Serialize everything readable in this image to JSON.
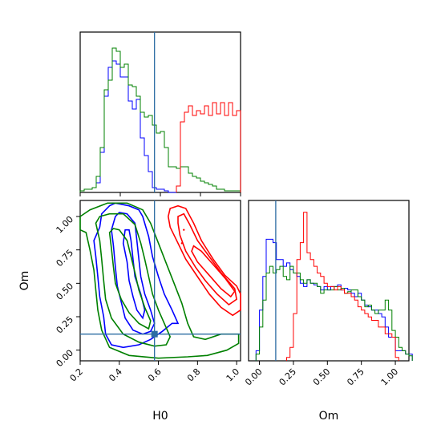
{
  "chart_data": {
    "type": "corner",
    "parameters": [
      "H0",
      "Om"
    ],
    "truth": {
      "H0": 0.58,
      "Om": 0.12
    },
    "series_colors": [
      "#0000ff",
      "#008000",
      "#ff0000"
    ],
    "truth_color": "#2b6ca3",
    "panels": {
      "h0_hist": {
        "xlim": [
          0.2,
          1.0
        ],
        "bin_width": 0.02,
        "series": [
          {
            "color": "#0000ff",
            "bins_start": 0.2,
            "values": [
              0.01,
              0.02,
              0.02,
              0.03,
              0.06,
              0.25,
              0.6,
              0.78,
              0.82,
              0.8,
              0.72,
              0.72,
              0.57,
              0.52,
              0.58,
              0.34,
              0.23,
              0.13,
              0.03,
              0.02,
              0.02,
              0.01,
              0,
              0
            ]
          },
          {
            "color": "#008000",
            "bins_start": 0.2,
            "values": [
              0.01,
              0.02,
              0.02,
              0.03,
              0.1,
              0.28,
              0.64,
              0.7,
              0.9,
              0.88,
              0.78,
              0.8,
              0.67,
              0.66,
              0.6,
              0.5,
              0.47,
              0.48,
              0.42,
              0.37,
              0.38,
              0.28,
              0.16,
              0.16,
              0.15,
              0.16,
              0.16,
              0.12,
              0.1,
              0.09,
              0.07,
              0.06,
              0.05,
              0.04,
              0.02,
              0.02,
              0.01,
              0.01,
              0.01,
              0.01
            ]
          },
          {
            "color": "#ff0000",
            "bins_start": 0.68,
            "values": [
              0.04,
              0.44,
              0.5,
              0.54,
              0.48,
              0.51,
              0.49,
              0.54,
              0.48,
              0.56,
              0.49,
              0.56,
              0.48,
              0.56,
              0.48,
              0.51
            ]
          }
        ]
      },
      "scatter": {
        "xlim": [
          0.2,
          1.02
        ],
        "ylim": [
          -0.08,
          1.12
        ],
        "xticks": [
          "0.2",
          "0.4",
          "0.6",
          "0.8",
          "1.0"
        ],
        "xtick_values": [
          0.2,
          0.4,
          0.6,
          0.8,
          1.0
        ],
        "yticks": [
          "0.00",
          "0.25",
          "0.50",
          "0.75",
          "1.00"
        ],
        "ytick_values": [
          0.0,
          0.25,
          0.5,
          0.75,
          1.0
        ],
        "ylabel": "Om",
        "xlabel": "H0",
        "contours": [
          {
            "color": "#0000ff",
            "points": [
              [
                0.35,
                1.08
              ],
              [
                0.31,
                1.02
              ],
              [
                0.3,
                0.92
              ],
              [
                0.27,
                0.82
              ],
              [
                0.28,
                0.7
              ],
              [
                0.29,
                0.55
              ],
              [
                0.3,
                0.4
              ],
              [
                0.32,
                0.25
              ],
              [
                0.33,
                0.12
              ],
              [
                0.36,
                0.04
              ],
              [
                0.42,
                0.02
              ],
              [
                0.5,
                0.04
              ],
              [
                0.56,
                0.08
              ],
              [
                0.62,
                0.14
              ],
              [
                0.67,
                0.2
              ],
              [
                0.7,
                0.2
              ],
              [
                0.67,
                0.3
              ],
              [
                0.63,
                0.42
              ],
              [
                0.6,
                0.55
              ],
              [
                0.57,
                0.7
              ],
              [
                0.55,
                0.85
              ],
              [
                0.52,
                1.0
              ],
              [
                0.5,
                1.05
              ],
              [
                0.45,
                1.08
              ],
              [
                0.38,
                1.1
              ]
            ]
          },
          {
            "color": "#0000ff",
            "points": [
              [
                0.38,
                1.0
              ],
              [
                0.36,
                0.9
              ],
              [
                0.37,
                0.78
              ],
              [
                0.38,
                0.62
              ],
              [
                0.39,
                0.48
              ],
              [
                0.41,
                0.36
              ],
              [
                0.43,
                0.24
              ],
              [
                0.47,
                0.15
              ],
              [
                0.52,
                0.12
              ],
              [
                0.56,
                0.14
              ],
              [
                0.58,
                0.2
              ],
              [
                0.56,
                0.3
              ],
              [
                0.53,
                0.42
              ],
              [
                0.51,
                0.55
              ],
              [
                0.5,
                0.68
              ],
              [
                0.49,
                0.82
              ],
              [
                0.48,
                0.95
              ],
              [
                0.44,
                1.02
              ],
              [
                0.4,
                1.03
              ]
            ]
          },
          {
            "color": "#0000ff",
            "points": [
              [
                0.43,
                0.9
              ],
              [
                0.42,
                0.8
              ],
              [
                0.44,
                0.66
              ],
              [
                0.45,
                0.52
              ],
              [
                0.47,
                0.4
              ],
              [
                0.49,
                0.3
              ],
              [
                0.52,
                0.24
              ],
              [
                0.53,
                0.3
              ],
              [
                0.51,
                0.42
              ],
              [
                0.48,
                0.55
              ],
              [
                0.47,
                0.68
              ],
              [
                0.46,
                0.82
              ],
              [
                0.45,
                0.9
              ]
            ]
          },
          {
            "color": "#008000",
            "points": [
              [
                0.2,
                0.9
              ],
              [
                0.23,
                0.88
              ],
              [
                0.25,
                0.75
              ],
              [
                0.27,
                0.6
              ],
              [
                0.28,
                0.45
              ],
              [
                0.29,
                0.3
              ],
              [
                0.31,
                0.15
              ],
              [
                0.35,
                0.02
              ],
              [
                0.45,
                -0.04
              ],
              [
                0.6,
                -0.06
              ],
              [
                0.75,
                -0.05
              ],
              [
                0.85,
                -0.04
              ],
              [
                0.95,
                0.0
              ],
              [
                1.01,
                0.05
              ],
              [
                1.01,
                0.12
              ],
              [
                0.92,
                0.12
              ],
              [
                0.84,
                0.08
              ],
              [
                0.78,
                0.1
              ],
              [
                0.75,
                0.2
              ],
              [
                0.72,
                0.35
              ],
              [
                0.68,
                0.5
              ],
              [
                0.64,
                0.65
              ],
              [
                0.6,
                0.8
              ],
              [
                0.56,
                0.95
              ],
              [
                0.52,
                1.05
              ],
              [
                0.44,
                1.1
              ],
              [
                0.34,
                1.1
              ],
              [
                0.25,
                1.05
              ],
              [
                0.2,
                1.0
              ]
            ]
          },
          {
            "color": "#008000",
            "points": [
              [
                0.28,
                0.95
              ],
              [
                0.3,
                0.82
              ],
              [
                0.31,
                0.68
              ],
              [
                0.32,
                0.52
              ],
              [
                0.33,
                0.38
              ],
              [
                0.36,
                0.24
              ],
              [
                0.42,
                0.12
              ],
              [
                0.5,
                0.06
              ],
              [
                0.58,
                0.03
              ],
              [
                0.64,
                0.04
              ],
              [
                0.66,
                0.1
              ],
              [
                0.63,
                0.2
              ],
              [
                0.6,
                0.3
              ],
              [
                0.57,
                0.42
              ],
              [
                0.55,
                0.55
              ],
              [
                0.53,
                0.68
              ],
              [
                0.51,
                0.8
              ],
              [
                0.48,
                0.94
              ],
              [
                0.42,
                1.02
              ],
              [
                0.35,
                1.02
              ],
              [
                0.3,
                1.0
              ]
            ]
          },
          {
            "color": "#008000",
            "points": [
              [
                0.35,
                0.88
              ],
              [
                0.36,
                0.76
              ],
              [
                0.37,
                0.62
              ],
              [
                0.38,
                0.5
              ],
              [
                0.41,
                0.38
              ],
              [
                0.45,
                0.28
              ],
              [
                0.5,
                0.2
              ],
              [
                0.55,
                0.16
              ],
              [
                0.56,
                0.22
              ],
              [
                0.53,
                0.32
              ],
              [
                0.5,
                0.45
              ],
              [
                0.48,
                0.58
              ],
              [
                0.46,
                0.7
              ],
              [
                0.44,
                0.82
              ],
              [
                0.4,
                0.9
              ],
              [
                0.37,
                0.91
              ]
            ]
          },
          {
            "color": "#ff0000",
            "points": [
              [
                0.66,
                1.06
              ],
              [
                0.7,
                1.08
              ],
              [
                0.74,
                1.06
              ],
              [
                0.78,
                0.95
              ],
              [
                0.82,
                0.82
              ],
              [
                0.88,
                0.68
              ],
              [
                0.94,
                0.56
              ],
              [
                1.0,
                0.48
              ],
              [
                1.02,
                0.42
              ],
              [
                1.02,
                0.3
              ],
              [
                0.98,
                0.26
              ],
              [
                0.92,
                0.32
              ],
              [
                0.86,
                0.42
              ],
              [
                0.8,
                0.55
              ],
              [
                0.74,
                0.68
              ],
              [
                0.7,
                0.8
              ],
              [
                0.66,
                0.92
              ],
              [
                0.65,
                1.0
              ]
            ]
          },
          {
            "color": "#ff0000",
            "points": [
              [
                0.7,
                1.0
              ],
              [
                0.73,
                1.02
              ],
              [
                0.76,
                0.94
              ],
              [
                0.8,
                0.82
              ],
              [
                0.86,
                0.7
              ],
              [
                0.92,
                0.58
              ],
              [
                0.99,
                0.46
              ],
              [
                1.0,
                0.38
              ],
              [
                0.96,
                0.34
              ],
              [
                0.9,
                0.42
              ],
              [
                0.84,
                0.52
              ],
              [
                0.79,
                0.62
              ],
              [
                0.74,
                0.74
              ],
              [
                0.71,
                0.86
              ],
              [
                0.7,
                0.95
              ]
            ]
          },
          {
            "color": "#ff0000",
            "points": [
              [
                0.78,
                0.78
              ],
              [
                0.82,
                0.74
              ],
              [
                0.88,
                0.64
              ],
              [
                0.94,
                0.54
              ],
              [
                0.99,
                0.44
              ],
              [
                0.97,
                0.4
              ],
              [
                0.92,
                0.46
              ],
              [
                0.86,
                0.56
              ],
              [
                0.8,
                0.66
              ],
              [
                0.77,
                0.74
              ]
            ]
          }
        ]
      },
      "om_hist": {
        "xlim": [
          -0.08,
          1.1
        ],
        "xticks": [
          "0.00",
          "0.25",
          "0.50",
          "0.75",
          "1.00"
        ],
        "xtick_values": [
          0.0,
          0.25,
          0.5,
          0.75,
          1.0
        ],
        "xlabel": "Om",
        "bin_width": 0.025,
        "series": [
          {
            "color": "#0000ff",
            "bins_start": -0.025,
            "values": [
              0.06,
              0.3,
              0.5,
              0.72,
              0.72,
              0.7,
              0.6,
              0.6,
              0.56,
              0.58,
              0.54,
              0.52,
              0.5,
              0.46,
              0.44,
              0.48,
              0.46,
              0.45,
              0.44,
              0.42,
              0.44,
              0.42,
              0.44,
              0.44,
              0.45,
              0.42,
              0.43,
              0.42,
              0.4,
              0.38,
              0.4,
              0.36,
              0.33,
              0.32,
              0.3,
              0.3,
              0.28,
              0.26,
              0.2,
              0.14,
              0.14,
              0.06,
              0.06,
              0.06,
              0.04,
              0.04
            ]
          },
          {
            "color": "#008000",
            "bins_start": -0.025,
            "values": [
              0.04,
              0.2,
              0.36,
              0.52,
              0.56,
              0.52,
              0.54,
              0.56,
              0.5,
              0.48,
              0.56,
              0.52,
              0.52,
              0.48,
              0.46,
              0.48,
              0.46,
              0.46,
              0.44,
              0.4,
              0.42,
              0.42,
              0.42,
              0.44,
              0.42,
              0.43,
              0.4,
              0.41,
              0.42,
              0.42,
              0.38,
              0.36,
              0.32,
              0.33,
              0.3,
              0.28,
              0.3,
              0.3,
              0.36,
              0.3,
              0.18,
              0.14,
              0.08,
              0.06,
              0.04,
              0.03
            ]
          },
          {
            "color": "#ff0000",
            "bins_start": 0.2,
            "values": [
              0.02,
              0.08,
              0.28,
              0.6,
              0.7,
              0.88,
              0.64,
              0.6,
              0.56,
              0.52,
              0.5,
              0.46,
              0.44,
              0.44,
              0.42,
              0.44,
              0.42,
              0.4,
              0.4,
              0.38,
              0.36,
              0.32,
              0.3,
              0.28,
              0.26,
              0.24,
              0.24,
              0.2,
              0.2,
              0.16,
              0.16,
              0.14,
              0.02
            ]
          }
        ]
      }
    }
  }
}
